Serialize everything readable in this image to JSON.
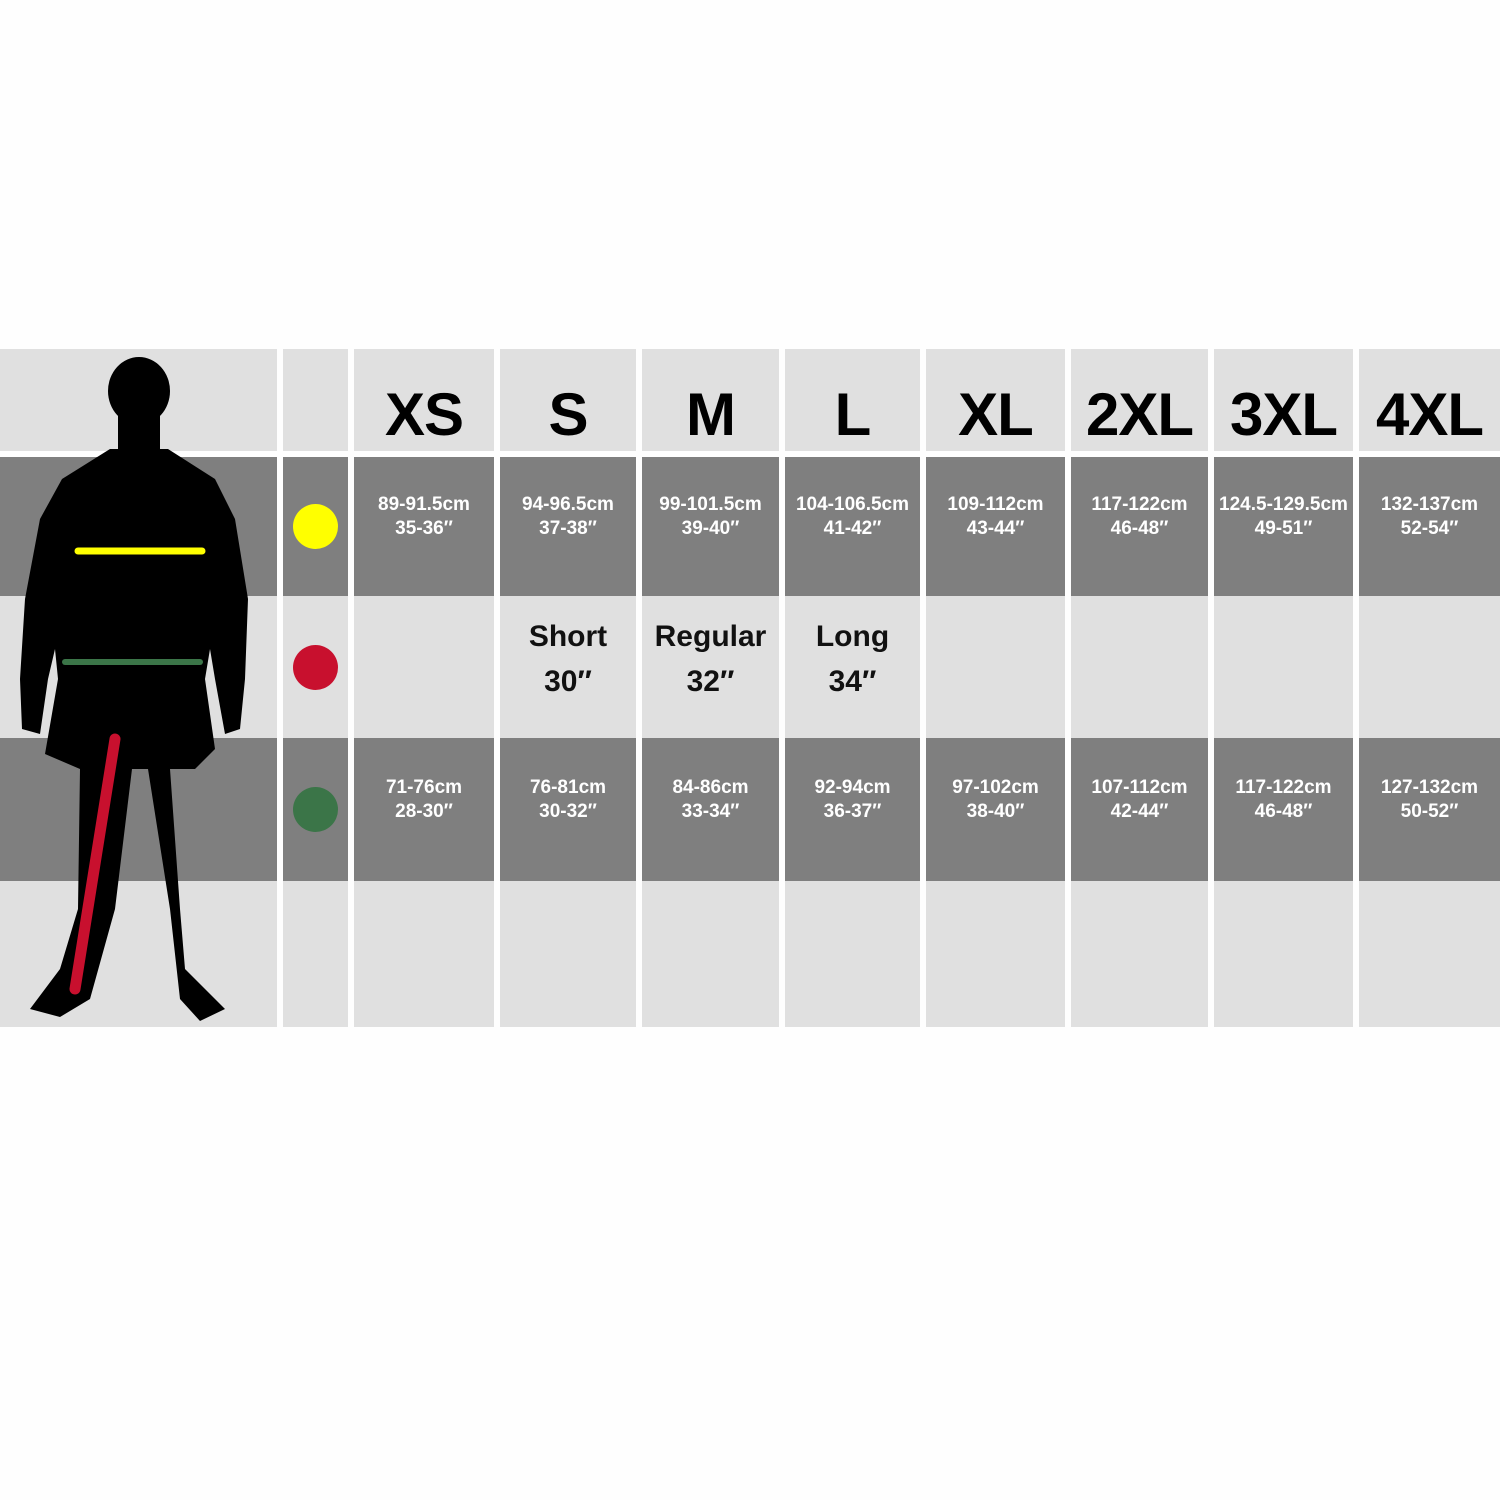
{
  "sizes": [
    "XS",
    "S",
    "M",
    "L",
    "XL",
    "2XL",
    "3XL",
    "4XL"
  ],
  "rows": [
    {
      "marker": "yellow-dot",
      "color": "#ffff00",
      "values": [
        [
          "89-91.5cm",
          "35-36″"
        ],
        [
          "94-96.5cm",
          "37-38″"
        ],
        [
          "99-101.5cm",
          "39-40″"
        ],
        [
          "104-106.5cm",
          "41-42″"
        ],
        [
          "109-112cm",
          "43-44″"
        ],
        [
          "117-122cm",
          "46-48″"
        ],
        [
          "124.5-129.5cm",
          "49-51″"
        ],
        [
          "132-137cm",
          "52-54″"
        ]
      ]
    },
    {
      "marker": "red-dot",
      "color": "#c8102e",
      "values": [
        [],
        [
          "Short",
          "30″"
        ],
        [
          "Regular",
          "32″"
        ],
        [
          "Long",
          "34″"
        ],
        [],
        [],
        [],
        []
      ]
    },
    {
      "marker": "green-dot",
      "color": "#3b7548",
      "values": [
        [
          "71-76cm",
          "28-30″"
        ],
        [
          "76-81cm",
          "30-32″"
        ],
        [
          "84-86cm",
          "33-34″"
        ],
        [
          "92-94cm",
          "36-37″"
        ],
        [
          "97-102cm",
          "38-40″"
        ],
        [
          "107-112cm",
          "42-44″"
        ],
        [
          "117-122cm",
          "46-48″"
        ],
        [
          "127-132cm",
          "50-52″"
        ]
      ]
    }
  ],
  "colors": {
    "light": "#e0e0e0",
    "dark": "#7f7f7f",
    "chest": "#ffff00",
    "waist": "#3b7548",
    "leg": "#c8102e"
  }
}
